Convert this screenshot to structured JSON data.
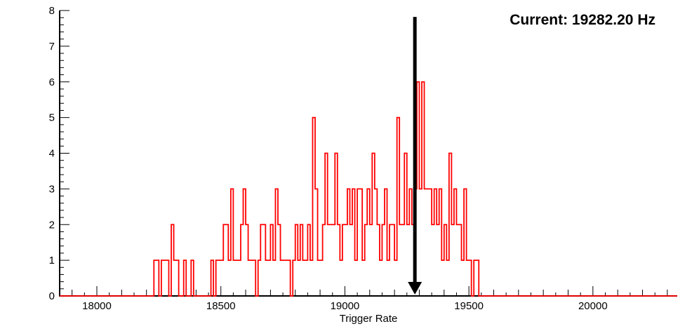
{
  "page": {
    "background": "#ffffff"
  },
  "chart_data": {
    "type": "bar",
    "subtype": "step-histogram",
    "title": "",
    "xlabel": "Trigger Rate",
    "ylabel": "",
    "xlim": [
      17850,
      20340
    ],
    "ylim": [
      0,
      8
    ],
    "x_major_ticks": [
      18000,
      18500,
      19000,
      19500,
      20000
    ],
    "x_minor_step": 50,
    "y_major_ticks": [
      0,
      1,
      2,
      3,
      4,
      5,
      6,
      7,
      8
    ],
    "y_minor_step": 0.2,
    "grid": false,
    "legend": "none",
    "series_name": "Trigger Rate histogram",
    "series_color": "#ff0000",
    "axis_color": "#000000",
    "bin_width": 10,
    "first_bin": 18220,
    "counts": [
      0,
      1,
      1,
      0,
      1,
      1,
      1,
      0,
      2,
      1,
      1,
      0,
      0,
      1,
      0,
      0,
      1,
      0,
      0,
      0,
      0,
      0,
      0,
      0,
      1,
      0,
      1,
      1,
      1,
      2,
      2,
      1,
      3,
      1,
      1,
      1,
      2,
      3,
      2,
      1,
      1,
      1,
      0,
      1,
      2,
      2,
      1,
      1,
      2,
      1,
      3,
      2,
      1,
      1,
      1,
      1,
      0,
      1,
      2,
      1,
      2,
      1,
      1,
      2,
      1,
      5,
      3,
      1,
      1,
      2,
      4,
      2,
      2,
      2,
      4,
      2,
      1,
      2,
      2,
      3,
      2,
      3,
      1,
      3,
      3,
      1,
      2,
      3,
      2,
      4,
      3,
      2,
      1,
      2,
      3,
      1,
      2,
      2,
      1,
      5,
      2,
      2,
      4,
      2,
      3,
      2,
      3,
      6,
      3,
      6,
      3,
      3,
      3,
      2,
      3,
      2,
      3,
      1,
      2,
      1,
      4,
      2,
      3,
      2,
      2,
      1,
      3,
      1,
      1,
      0,
      1,
      1,
      0
    ],
    "annotation": {
      "label": "Current: 19282.20 Hz",
      "arrow_x": 19282.2,
      "arrow_color": "#000000"
    }
  }
}
